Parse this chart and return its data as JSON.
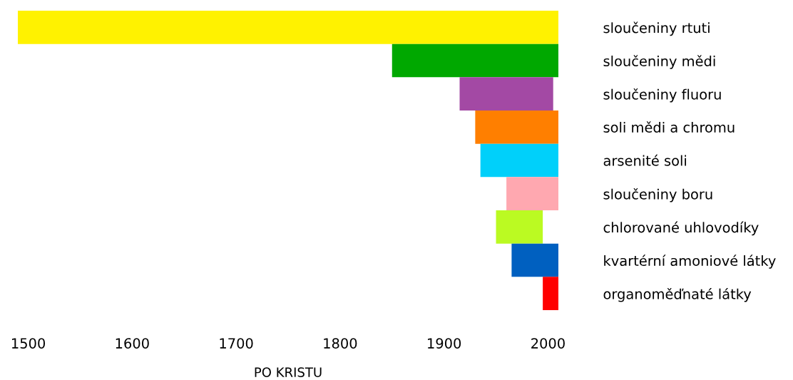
{
  "chart_data": {
    "type": "bar",
    "orientation": "horizontal",
    "xlabel": "PO KRISTU",
    "categories": [
      "sloučeniny rtuti",
      "sloučeniny mědi",
      "sloučeniny fluoru",
      "soli mědi a chromu",
      "arsenité soli",
      "sloučeniny boru",
      "chlorované uhlovodíky",
      "kvartérní amoniové látky",
      "organoměďnaté látky"
    ],
    "base": [
      1490,
      1850,
      1915,
      1930,
      1935,
      1960,
      1950,
      1965,
      1995
    ],
    "values": [
      520,
      160,
      90,
      80,
      75,
      50,
      45,
      45,
      15
    ],
    "colors": [
      "#fff200",
      "#00a800",
      "#a349a4",
      "#ff7f00",
      "#00d0fa",
      "#ffa8b0",
      "#bbfa22",
      "#0060c0",
      "#ff0000"
    ],
    "xlim": [
      1490,
      2010
    ],
    "xticks": [
      1500,
      1600,
      1700,
      1800,
      1900,
      2000
    ],
    "grid": false,
    "legend": false
  }
}
